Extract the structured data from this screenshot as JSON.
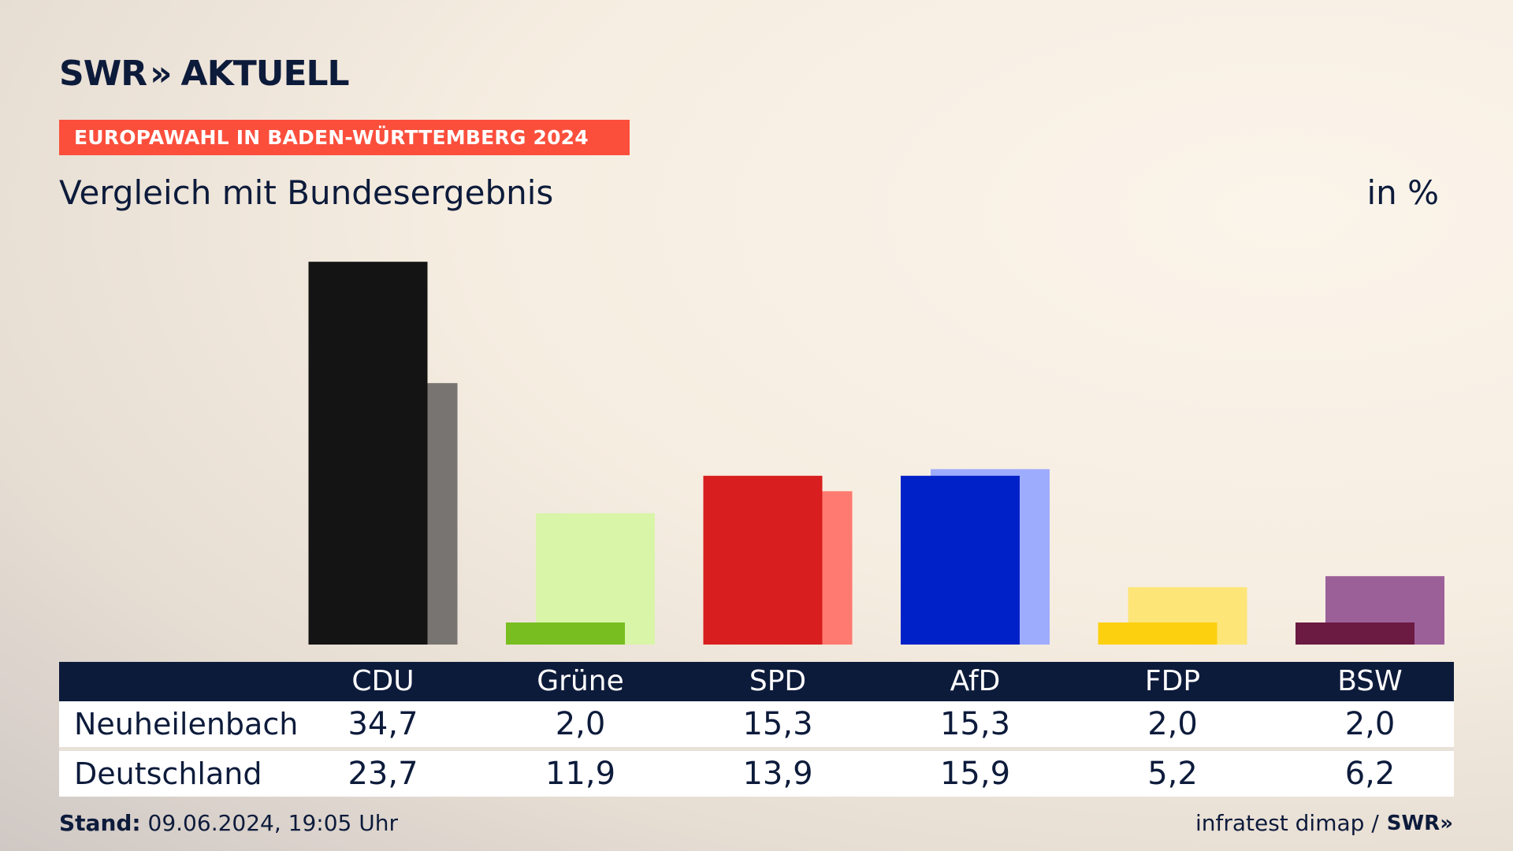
{
  "brand": {
    "logo_text_1": "SWR",
    "logo_chevrons": "»",
    "logo_text_2": "AKTUELL"
  },
  "header": {
    "headline": "EUROPAWAHL IN BADEN-WÜRTTEMBERG 2024",
    "headline_color": "#fb4f3c"
  },
  "subtitle": "Vergleich mit Bundesergebnis",
  "unit_label": "in %",
  "table": {
    "columns": [
      "CDU",
      "Grüne",
      "SPD",
      "AfD",
      "FDP",
      "BSW"
    ],
    "rows": [
      {
        "label": "Neuheilenbach",
        "values": [
          "34,7",
          "2,0",
          "15,3",
          "15,3",
          "2,0",
          "2,0"
        ]
      },
      {
        "label": "Deutschland",
        "values": [
          "23,7",
          "11,9",
          "13,9",
          "15,9",
          "5,2",
          "6,2"
        ]
      }
    ]
  },
  "chart_data": {
    "type": "bar",
    "categories": [
      "CDU",
      "Grüne",
      "SPD",
      "AfD",
      "FDP",
      "BSW"
    ],
    "series": [
      {
        "name": "Neuheilenbach",
        "values": [
          34.7,
          2.0,
          15.3,
          15.3,
          2.0,
          2.0
        ],
        "colors": [
          "#141414",
          "#78be20",
          "#d81e1e",
          "#0021c8",
          "#fdd00f",
          "#6b1a42"
        ]
      },
      {
        "name": "Deutschland",
        "values": [
          23.7,
          11.9,
          13.9,
          15.9,
          5.2,
          6.2
        ],
        "colors": [
          "#777471",
          "#d8f5a8",
          "#ff7a70",
          "#9eacfd",
          "#fde577",
          "#9c6099"
        ]
      }
    ],
    "ylim": [
      0,
      35
    ]
  },
  "footer": {
    "stand_label": "Stand:",
    "stand_value": "09.06.2024, 19:05 Uhr",
    "source": "infratest dimap /",
    "source_logo": "SWR»"
  }
}
